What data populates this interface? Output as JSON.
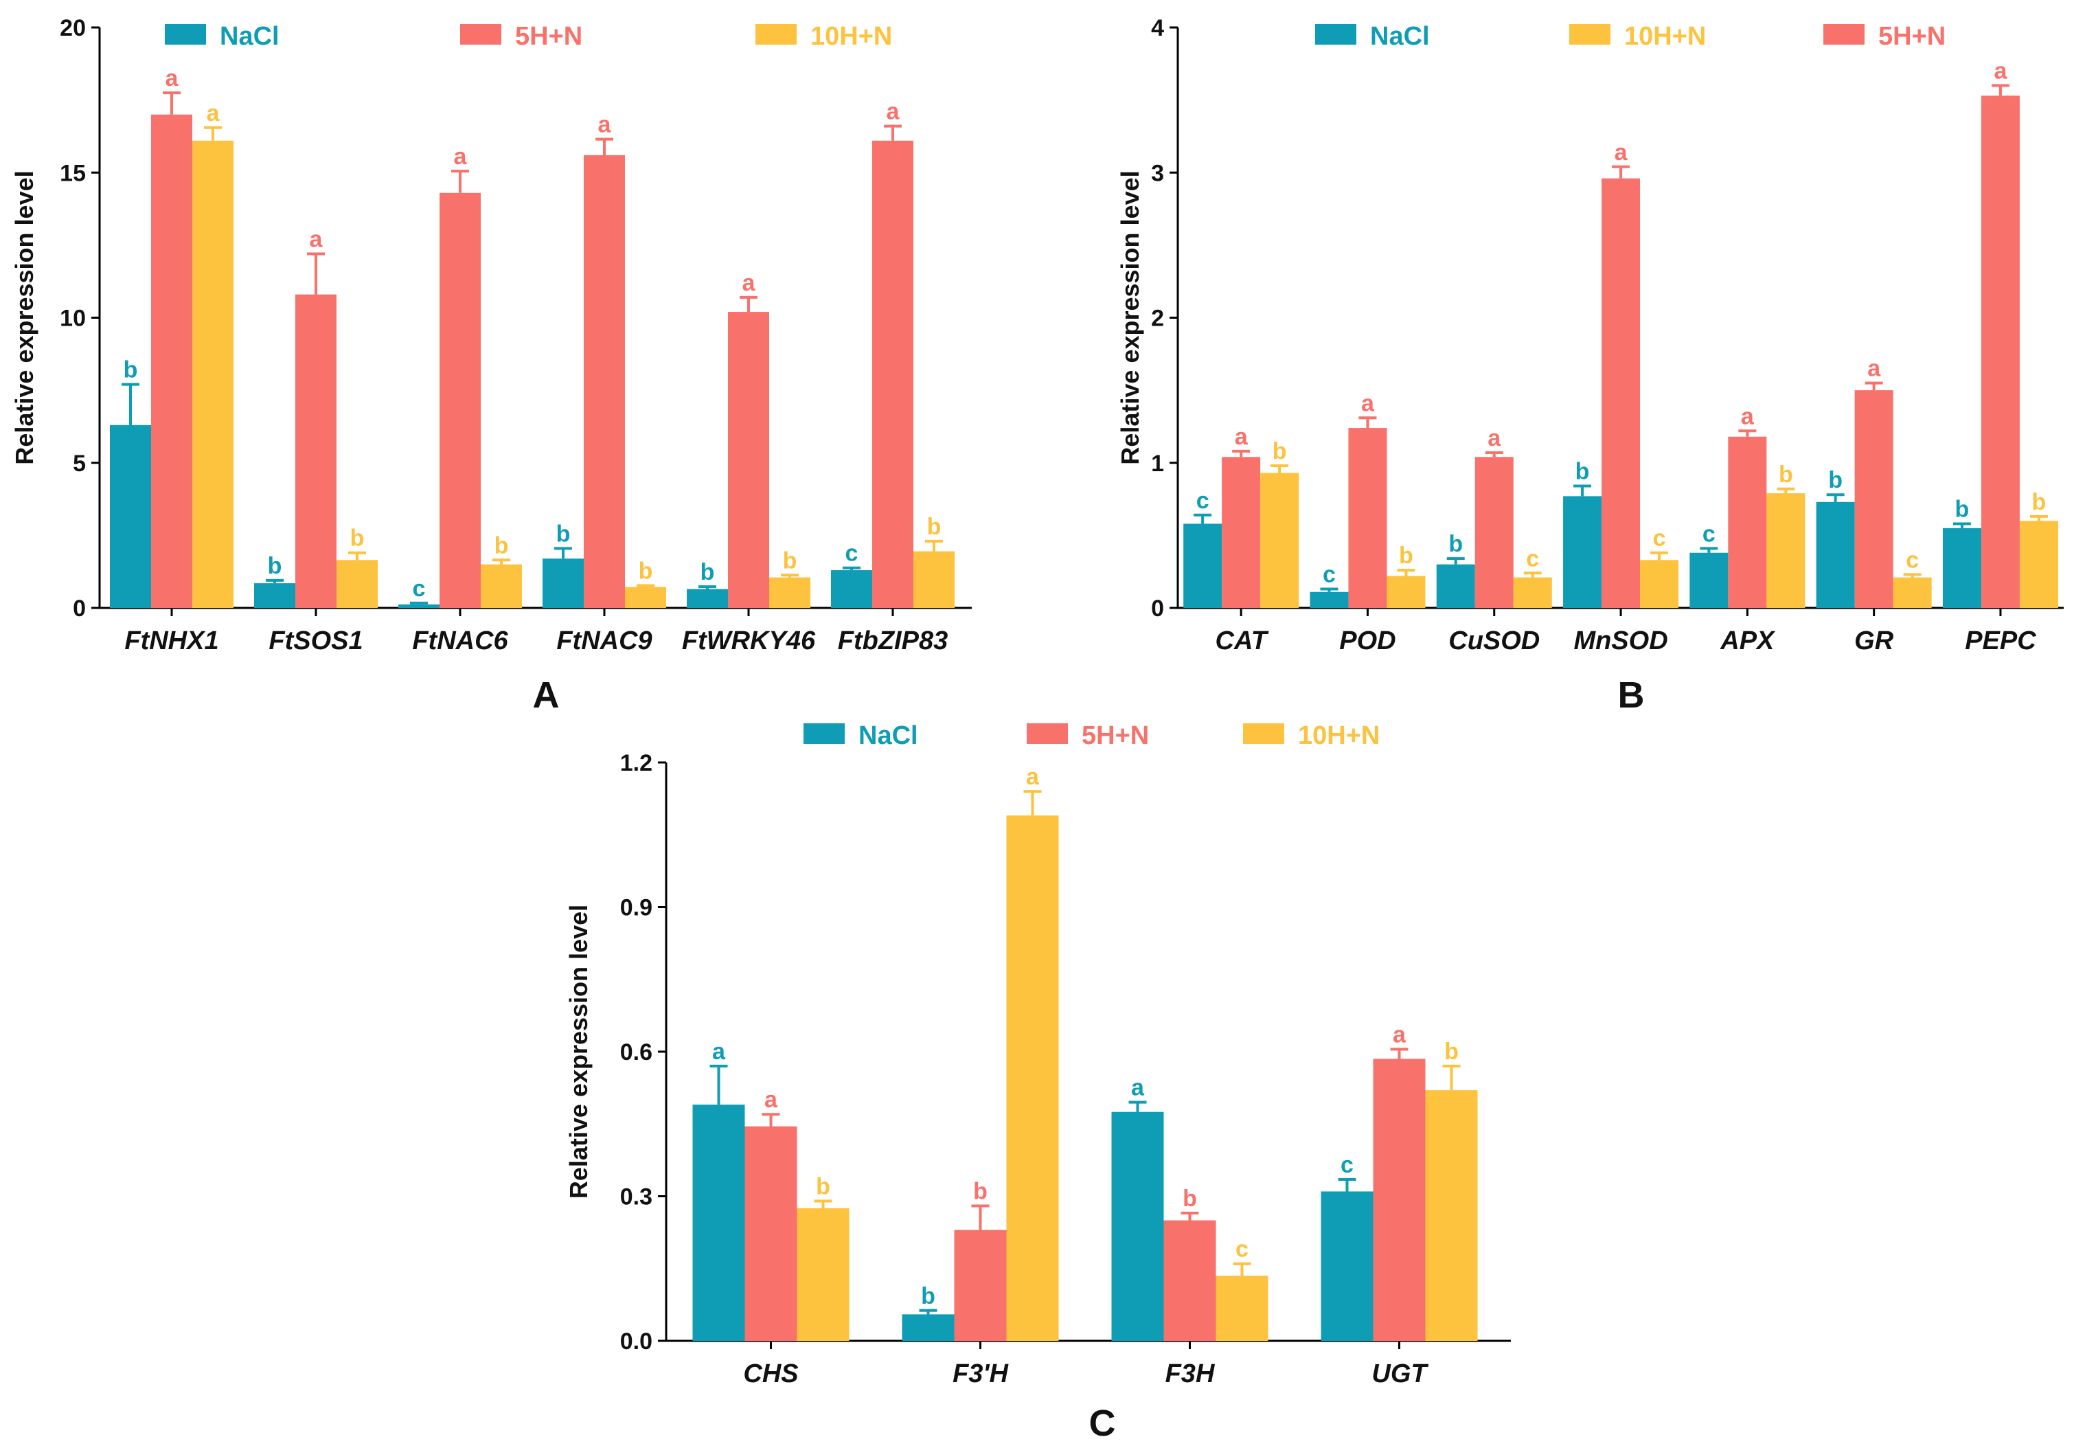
{
  "chart_data": [
    {
      "type": "bar",
      "panel_label": "A",
      "ylabel": "Relative expression level",
      "ylim": [
        0,
        20
      ],
      "yticks": [
        "0",
        "5",
        "10",
        "15",
        "20"
      ],
      "categories": [
        "FtNHX1",
        "FtSOS1",
        "FtNAC6",
        "FtNAC9",
        "FtWRKY46",
        "FtbZIP83"
      ],
      "legend_order": [
        "NaCl",
        "5H+N",
        "10H+N"
      ],
      "series": [
        {
          "name": "NaCl",
          "color": "#0e9db5",
          "values": [
            6.3,
            0.85,
            0.12,
            1.7,
            0.65,
            1.3
          ],
          "errors": [
            1.4,
            0.1,
            0.05,
            0.35,
            0.08,
            0.08
          ],
          "letters": [
            "b",
            "b",
            "c",
            "b",
            "b",
            "c"
          ]
        },
        {
          "name": "5H+N",
          "color": "#f9716b",
          "values": [
            17.0,
            10.8,
            14.3,
            15.6,
            10.2,
            16.1
          ],
          "errors": [
            0.75,
            1.4,
            0.75,
            0.55,
            0.5,
            0.5
          ],
          "letters": [
            "a",
            "a",
            "a",
            "a",
            "a",
            "a"
          ]
        },
        {
          "name": "10H+N",
          "color": "#fdc23e",
          "values": [
            16.1,
            1.65,
            1.5,
            0.72,
            1.05,
            1.95
          ],
          "errors": [
            0.45,
            0.25,
            0.15,
            0.05,
            0.08,
            0.35
          ],
          "letters": [
            "a",
            "b",
            "b",
            "b",
            "b",
            "b"
          ]
        }
      ]
    },
    {
      "type": "bar",
      "panel_label": "B",
      "ylabel": "Relative expression level",
      "ylim": [
        0,
        4
      ],
      "yticks": [
        "0",
        "1",
        "2",
        "3",
        "4"
      ],
      "categories": [
        "CAT",
        "POD",
        "CuSOD",
        "MnSOD",
        "APX",
        "GR",
        "PEPC"
      ],
      "legend_order": [
        "NaCl",
        "10H+N",
        "5H+N"
      ],
      "series": [
        {
          "name": "NaCl",
          "color": "#0e9db5",
          "values": [
            0.58,
            0.11,
            0.3,
            0.77,
            0.38,
            0.73,
            0.55
          ],
          "errors": [
            0.06,
            0.02,
            0.04,
            0.07,
            0.03,
            0.05,
            0.03
          ],
          "letters": [
            "c",
            "c",
            "b",
            "b",
            "c",
            "b",
            "b"
          ]
        },
        {
          "name": "5H+N",
          "color": "#f9716b",
          "values": [
            1.04,
            1.24,
            1.04,
            2.96,
            1.18,
            1.5,
            3.53
          ],
          "errors": [
            0.04,
            0.07,
            0.03,
            0.08,
            0.04,
            0.05,
            0.07
          ],
          "letters": [
            "a",
            "a",
            "a",
            "a",
            "a",
            "a",
            "a"
          ]
        },
        {
          "name": "10H+N",
          "color": "#fdc23e",
          "values": [
            0.93,
            0.22,
            0.21,
            0.33,
            0.79,
            0.21,
            0.6
          ],
          "errors": [
            0.05,
            0.04,
            0.03,
            0.05,
            0.03,
            0.02,
            0.03
          ],
          "letters": [
            "b",
            "b",
            "c",
            "c",
            "b",
            "c",
            "b"
          ]
        }
      ]
    },
    {
      "type": "bar",
      "panel_label": "C",
      "ylabel": "Relative expression level",
      "ylim": [
        0,
        1.2
      ],
      "yticks": [
        "0.0",
        "0.3",
        "0.6",
        "0.9",
        "1.2"
      ],
      "categories": [
        "CHS",
        "F3'H",
        "F3H",
        "UGT"
      ],
      "legend_order": [
        "NaCl",
        "5H+N",
        "10H+N"
      ],
      "series": [
        {
          "name": "NaCl",
          "color": "#0e9db5",
          "values": [
            0.49,
            0.055,
            0.475,
            0.31
          ],
          "errors": [
            0.08,
            0.008,
            0.02,
            0.025
          ],
          "letters": [
            "a",
            "b",
            "a",
            "c"
          ]
        },
        {
          "name": "5H+N",
          "color": "#f9716b",
          "values": [
            0.445,
            0.23,
            0.25,
            0.585
          ],
          "errors": [
            0.025,
            0.05,
            0.015,
            0.02
          ],
          "letters": [
            "a",
            "b",
            "b",
            "a"
          ]
        },
        {
          "name": "10H+N",
          "color": "#fdc23e",
          "values": [
            0.275,
            1.09,
            0.135,
            0.52
          ],
          "errors": [
            0.015,
            0.05,
            0.025,
            0.05
          ],
          "letters": [
            "b",
            "a",
            "c",
            "b"
          ]
        }
      ]
    }
  ]
}
